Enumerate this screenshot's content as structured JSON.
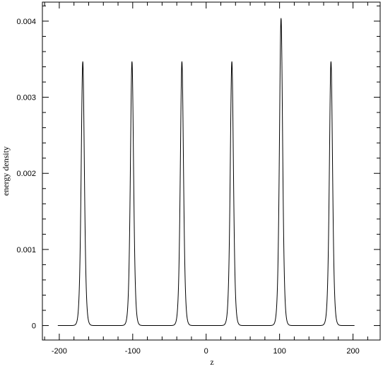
{
  "chart_data": {
    "type": "line",
    "title": "",
    "xlabel": "z",
    "ylabel": "energy density",
    "xlim": [
      -223,
      237
    ],
    "ylim": [
      -0.00019,
      0.00425
    ],
    "xticks": [
      -200,
      -100,
      0,
      100,
      200
    ],
    "xtick_labels": [
      "-200",
      "-100",
      "0",
      "100",
      "200"
    ],
    "yticks": [
      0,
      0.001,
      0.002,
      0.003,
      0.004
    ],
    "ytick_labels": [
      "0",
      "0.001",
      "0.002",
      "0.003",
      "0.004"
    ],
    "x_range": [
      -202,
      202
    ],
    "grid": false,
    "legend": "none",
    "series": [
      {
        "peaks": [
          {
            "z": -168,
            "height": 0.00347
          },
          {
            "z": -101,
            "height": 0.00347
          },
          {
            "z": -33,
            "height": 0.00347
          },
          {
            "z": 35,
            "height": 0.00347
          },
          {
            "z": 102,
            "height": 0.00404
          },
          {
            "z": 170,
            "height": 0.00347
          }
        ],
        "peak_halfwidth": 2.9
      }
    ],
    "line_color": "#000000"
  }
}
